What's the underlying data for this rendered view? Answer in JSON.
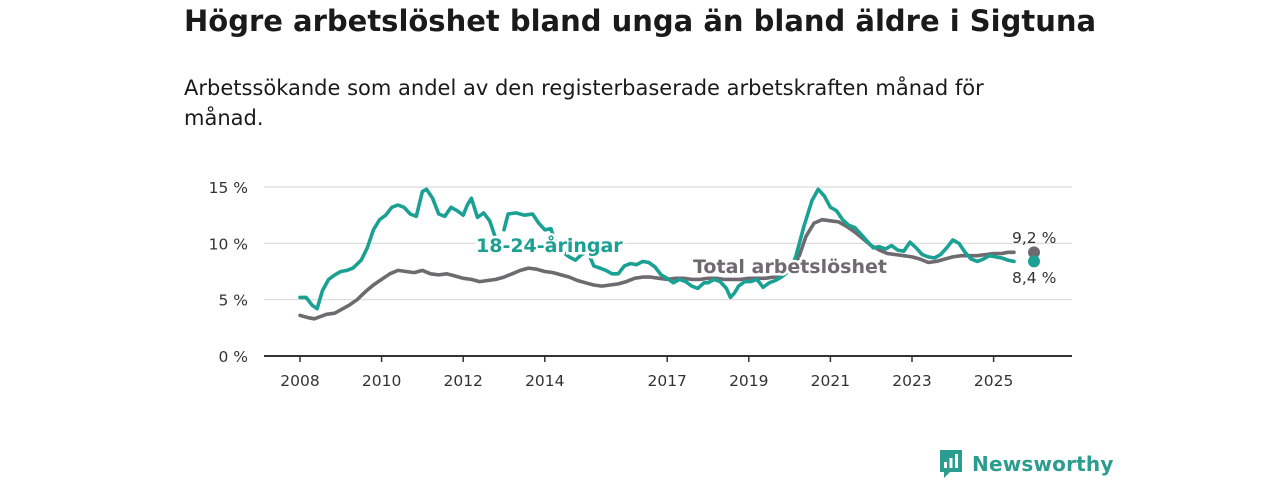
{
  "header": {
    "title": "Högre arbetslöshet bland unga än bland äldre i Sigtuna",
    "subtitle": "Arbetssökande som andel av den registerbaserade arbetskraften månad för månad."
  },
  "brand": {
    "name": "Newsworthy",
    "icon": "newsworthy-logo-icon"
  },
  "colors": {
    "youth": "#1aa193",
    "total": "#6e6a70",
    "grid": "#d9d9d9",
    "axis": "#333333"
  },
  "chart_data": {
    "type": "line",
    "title": "Högre arbetslöshet bland unga än bland äldre i Sigtuna",
    "subtitle": "Arbetssökande som andel av den registerbaserade arbetskraften månad för månad.",
    "ylim": [
      0,
      16
    ],
    "yticks": [
      0,
      5,
      10,
      15
    ],
    "ytick_labels": [
      "0 %",
      "5 %",
      "10 %",
      "15 %"
    ],
    "xticks": [
      2008,
      2010,
      2012,
      2014,
      2017,
      2019,
      2021,
      2023,
      2025
    ],
    "xtick_labels": [
      "2008",
      "2010",
      "2012",
      "2014",
      "2017",
      "2019",
      "2021",
      "2023",
      "2025"
    ],
    "grid": true,
    "series": [
      {
        "name": "18-24-åringar",
        "color": "#1aa193",
        "end_label": "8,4 %",
        "points": [
          [
            2008.0,
            5.2
          ],
          [
            2008.15,
            5.2
          ],
          [
            2008.3,
            4.5
          ],
          [
            2008.42,
            4.2
          ],
          [
            2008.55,
            5.8
          ],
          [
            2008.7,
            6.8
          ],
          [
            2008.85,
            7.2
          ],
          [
            2009.0,
            7.5
          ],
          [
            2009.15,
            7.6
          ],
          [
            2009.3,
            7.8
          ],
          [
            2009.5,
            8.5
          ],
          [
            2009.65,
            9.6
          ],
          [
            2009.8,
            11.2
          ],
          [
            2009.95,
            12.1
          ],
          [
            2010.1,
            12.5
          ],
          [
            2010.25,
            13.2
          ],
          [
            2010.4,
            13.4
          ],
          [
            2010.55,
            13.2
          ],
          [
            2010.7,
            12.6
          ],
          [
            2010.85,
            12.4
          ],
          [
            2011.0,
            14.6
          ],
          [
            2011.1,
            14.8
          ],
          [
            2011.25,
            14.0
          ],
          [
            2011.4,
            12.6
          ],
          [
            2011.55,
            12.4
          ],
          [
            2011.7,
            13.2
          ],
          [
            2011.85,
            12.9
          ],
          [
            2012.0,
            12.5
          ],
          [
            2012.1,
            13.4
          ],
          [
            2012.2,
            14.0
          ],
          [
            2012.35,
            12.3
          ],
          [
            2012.5,
            12.7
          ],
          [
            2012.65,
            12.0
          ],
          [
            2012.8,
            10.4
          ],
          [
            2012.95,
            9.9
          ]
        ],
        "points_b": [
          [
            2013.0,
            11.2
          ],
          [
            2013.1,
            12.6
          ],
          [
            2013.3,
            12.7
          ],
          [
            2013.5,
            12.5
          ],
          [
            2013.7,
            12.6
          ],
          [
            2013.85,
            11.8
          ],
          [
            2014.0,
            11.2
          ],
          [
            2014.15,
            11.3
          ],
          [
            2014.3,
            9.6
          ],
          [
            2014.45,
            9.2
          ],
          [
            2014.6,
            8.8
          ],
          [
            2014.75,
            8.5
          ],
          [
            2014.9,
            9.0
          ],
          [
            2015.05,
            9.3
          ],
          [
            2015.2,
            8.0
          ],
          [
            2015.35,
            7.8
          ],
          [
            2015.5,
            7.6
          ],
          [
            2015.65,
            7.3
          ],
          [
            2015.8,
            7.3
          ],
          [
            2015.95,
            8.0
          ],
          [
            2016.1,
            8.2
          ],
          [
            2016.25,
            8.1
          ],
          [
            2016.4,
            8.4
          ],
          [
            2016.55,
            8.3
          ],
          [
            2016.7,
            7.9
          ],
          [
            2016.85,
            7.2
          ],
          [
            2017.0,
            6.9
          ],
          [
            2017.15,
            6.5
          ],
          [
            2017.3,
            6.8
          ],
          [
            2017.45,
            6.6
          ],
          [
            2017.6,
            6.2
          ],
          [
            2017.75,
            6.0
          ],
          [
            2017.9,
            6.5
          ],
          [
            2018.0,
            6.5
          ],
          [
            2018.15,
            6.8
          ],
          [
            2018.3,
            6.6
          ],
          [
            2018.45,
            6.0
          ],
          [
            2018.55,
            5.2
          ],
          [
            2018.65,
            5.6
          ],
          [
            2018.75,
            6.2
          ],
          [
            2018.9,
            6.6
          ],
          [
            2019.05,
            6.6
          ],
          [
            2019.2,
            6.8
          ],
          [
            2019.35,
            6.1
          ],
          [
            2019.5,
            6.5
          ],
          [
            2019.65,
            6.7
          ],
          [
            2019.8,
            7.0
          ],
          [
            2020.0,
            7.6
          ],
          [
            2020.15,
            8.8
          ],
          [
            2020.35,
            11.5
          ],
          [
            2020.55,
            13.8
          ],
          [
            2020.7,
            14.8
          ],
          [
            2020.85,
            14.2
          ],
          [
            2021.0,
            13.2
          ],
          [
            2021.15,
            12.9
          ],
          [
            2021.3,
            12.1
          ],
          [
            2021.45,
            11.6
          ],
          [
            2021.6,
            11.4
          ],
          [
            2021.75,
            10.8
          ],
          [
            2021.9,
            10.2
          ],
          [
            2022.05,
            9.6
          ],
          [
            2022.2,
            9.7
          ],
          [
            2022.35,
            9.5
          ],
          [
            2022.5,
            9.8
          ],
          [
            2022.65,
            9.4
          ],
          [
            2022.8,
            9.3
          ],
          [
            2022.95,
            10.1
          ],
          [
            2023.1,
            9.6
          ],
          [
            2023.25,
            9.0
          ],
          [
            2023.4,
            8.8
          ],
          [
            2023.55,
            8.7
          ],
          [
            2023.7,
            9.0
          ],
          [
            2023.85,
            9.6
          ],
          [
            2024.0,
            10.3
          ],
          [
            2024.15,
            10.0
          ],
          [
            2024.3,
            9.2
          ],
          [
            2024.45,
            8.6
          ],
          [
            2024.6,
            8.4
          ],
          [
            2024.75,
            8.6
          ],
          [
            2024.9,
            8.9
          ],
          [
            2025.05,
            8.8
          ],
          [
            2025.2,
            8.7
          ],
          [
            2025.35,
            8.5
          ],
          [
            2025.5,
            8.4
          ]
        ]
      },
      {
        "name": "Total arbetslöshet",
        "color": "#6e6a70",
        "end_label": "9,2 %",
        "points": [
          [
            2008.0,
            3.6
          ],
          [
            2008.2,
            3.4
          ],
          [
            2008.35,
            3.3
          ],
          [
            2008.5,
            3.5
          ],
          [
            2008.65,
            3.7
          ],
          [
            2008.85,
            3.8
          ],
          [
            2009.0,
            4.1
          ],
          [
            2009.2,
            4.5
          ],
          [
            2009.4,
            5.0
          ],
          [
            2009.6,
            5.7
          ],
          [
            2009.8,
            6.3
          ],
          [
            2010.0,
            6.8
          ],
          [
            2010.2,
            7.3
          ],
          [
            2010.4,
            7.6
          ],
          [
            2010.6,
            7.5
          ],
          [
            2010.8,
            7.4
          ],
          [
            2011.0,
            7.6
          ],
          [
            2011.2,
            7.3
          ],
          [
            2011.4,
            7.2
          ],
          [
            2011.6,
            7.3
          ],
          [
            2011.8,
            7.1
          ],
          [
            2012.0,
            6.9
          ],
          [
            2012.2,
            6.8
          ],
          [
            2012.4,
            6.6
          ],
          [
            2012.6,
            6.7
          ],
          [
            2012.8,
            6.8
          ],
          [
            2013.0,
            7.0
          ],
          [
            2013.2,
            7.3
          ],
          [
            2013.4,
            7.6
          ],
          [
            2013.6,
            7.8
          ],
          [
            2013.8,
            7.7
          ],
          [
            2014.0,
            7.5
          ],
          [
            2014.2,
            7.4
          ],
          [
            2014.4,
            7.2
          ],
          [
            2014.6,
            7.0
          ],
          [
            2014.8,
            6.7
          ],
          [
            2015.0,
            6.5
          ],
          [
            2015.2,
            6.3
          ],
          [
            2015.4,
            6.2
          ],
          [
            2015.6,
            6.3
          ],
          [
            2015.8,
            6.4
          ],
          [
            2016.0,
            6.6
          ],
          [
            2016.2,
            6.9
          ],
          [
            2016.4,
            7.0
          ],
          [
            2016.6,
            7.0
          ],
          [
            2016.8,
            6.9
          ],
          [
            2017.0,
            6.8
          ],
          [
            2017.2,
            6.9
          ],
          [
            2017.4,
            6.9
          ],
          [
            2017.6,
            6.8
          ],
          [
            2017.8,
            6.8
          ],
          [
            2018.0,
            6.9
          ],
          [
            2018.2,
            6.9
          ],
          [
            2018.4,
            6.8
          ],
          [
            2018.6,
            6.8
          ],
          [
            2018.8,
            6.8
          ],
          [
            2019.0,
            6.9
          ],
          [
            2019.2,
            6.9
          ],
          [
            2019.4,
            6.9
          ],
          [
            2019.6,
            7.0
          ],
          [
            2019.8,
            7.1
          ],
          [
            2020.0,
            7.8
          ],
          [
            2020.2,
            8.5
          ],
          [
            2020.4,
            10.6
          ],
          [
            2020.6,
            11.8
          ],
          [
            2020.8,
            12.1
          ],
          [
            2021.0,
            12.0
          ],
          [
            2021.2,
            11.9
          ],
          [
            2021.4,
            11.5
          ],
          [
            2021.6,
            11.0
          ],
          [
            2021.8,
            10.4
          ],
          [
            2022.0,
            9.8
          ],
          [
            2022.2,
            9.4
          ],
          [
            2022.4,
            9.1
          ],
          [
            2022.6,
            9.0
          ],
          [
            2022.8,
            8.9
          ],
          [
            2023.0,
            8.8
          ],
          [
            2023.2,
            8.6
          ],
          [
            2023.4,
            8.3
          ],
          [
            2023.6,
            8.4
          ],
          [
            2023.8,
            8.6
          ],
          [
            2024.0,
            8.8
          ],
          [
            2024.2,
            8.9
          ],
          [
            2024.4,
            8.9
          ],
          [
            2024.6,
            8.9
          ],
          [
            2024.8,
            9.0
          ],
          [
            2025.0,
            9.1
          ],
          [
            2025.2,
            9.1
          ],
          [
            2025.35,
            9.2
          ],
          [
            2025.5,
            9.2
          ]
        ]
      }
    ],
    "series_labels": [
      "18-24-åringar",
      "Total arbetslöshet"
    ]
  }
}
